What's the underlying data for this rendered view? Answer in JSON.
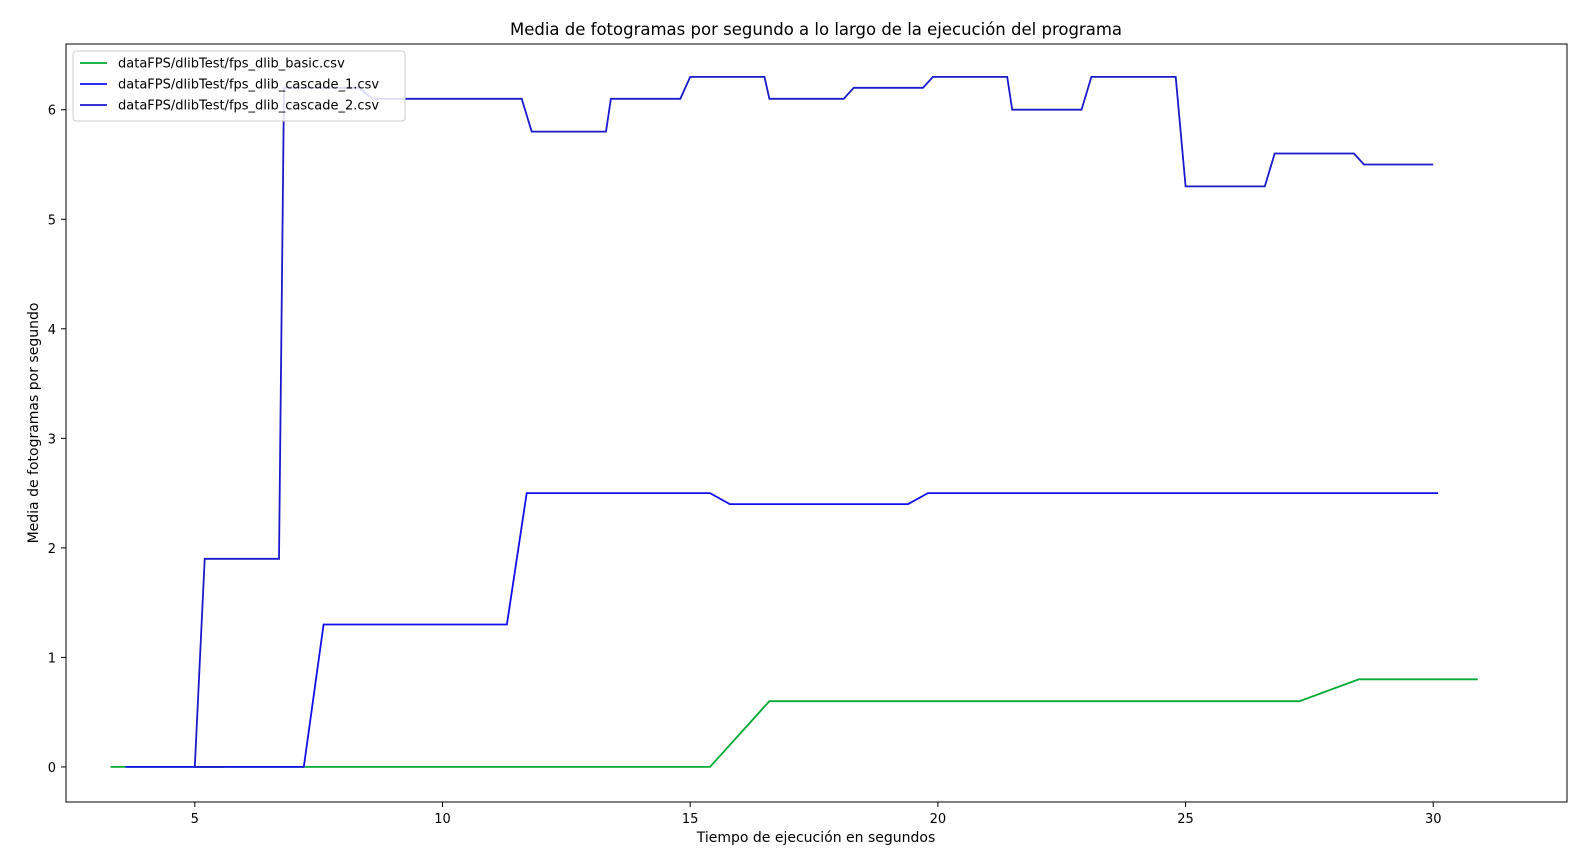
{
  "chart_data": {
    "type": "line",
    "title": "Media de fotogramas por segundo a lo largo de la ejecución del programa",
    "xlabel": "Tiempo de ejecución en segundos",
    "ylabel": "Media de fotogramas por segundo",
    "xlim": [
      2.4,
      32.7
    ],
    "ylim": [
      -0.32,
      6.6
    ],
    "xticks": [
      5,
      10,
      15,
      20,
      25,
      30
    ],
    "yticks": [
      0,
      1,
      2,
      3,
      4,
      5,
      6
    ],
    "grid": false,
    "legend_position": "upper-left",
    "series": [
      {
        "name": "dataFPS/dlibTest/fps_dlib_basic.csv",
        "color": "#00aa33",
        "points": [
          [
            3.3,
            0
          ],
          [
            15.4,
            0
          ],
          [
            16.6,
            0.6
          ],
          [
            27.3,
            0.6
          ],
          [
            28.5,
            0.8
          ],
          [
            30.9,
            0.8
          ]
        ]
      },
      {
        "name": "dataFPS/dlibTest/fps_dlib_cascade_1.csv",
        "color": "#1010ee",
        "points": [
          [
            3.6,
            0
          ],
          [
            7.2,
            0
          ],
          [
            7.6,
            1.3
          ],
          [
            11.3,
            1.3
          ],
          [
            11.7,
            2.5
          ],
          [
            15.4,
            2.5
          ],
          [
            15.8,
            2.4
          ],
          [
            19.4,
            2.4
          ],
          [
            19.8,
            2.5
          ],
          [
            30.1,
            2.5
          ]
        ]
      },
      {
        "name": "dataFPS/dlibTest/fps_dlib_cascade_2.csv",
        "color": "#1a1acc",
        "points": [
          [
            5.6,
            0
          ],
          [
            5.0,
            0
          ],
          [
            5.2,
            1.9
          ],
          [
            6.7,
            1.9
          ],
          [
            6.8,
            6.2
          ],
          [
            8.3,
            6.2
          ],
          [
            8.6,
            6.1
          ],
          [
            11.6,
            6.1
          ],
          [
            11.8,
            5.8
          ],
          [
            13.3,
            5.8
          ],
          [
            13.4,
            6.1
          ],
          [
            14.8,
            6.1
          ],
          [
            15.0,
            6.3
          ],
          [
            16.5,
            6.3
          ],
          [
            16.6,
            6.1
          ],
          [
            18.1,
            6.1
          ],
          [
            18.3,
            6.2
          ],
          [
            19.7,
            6.2
          ],
          [
            19.9,
            6.3
          ],
          [
            21.4,
            6.3
          ],
          [
            21.5,
            6.0
          ],
          [
            22.9,
            6.0
          ],
          [
            23.1,
            6.3
          ],
          [
            24.8,
            6.3
          ],
          [
            25.0,
            5.3
          ],
          [
            26.6,
            5.3
          ],
          [
            26.8,
            5.6
          ],
          [
            28.4,
            5.6
          ],
          [
            28.6,
            5.5
          ],
          [
            30.0,
            5.5
          ]
        ]
      }
    ]
  }
}
